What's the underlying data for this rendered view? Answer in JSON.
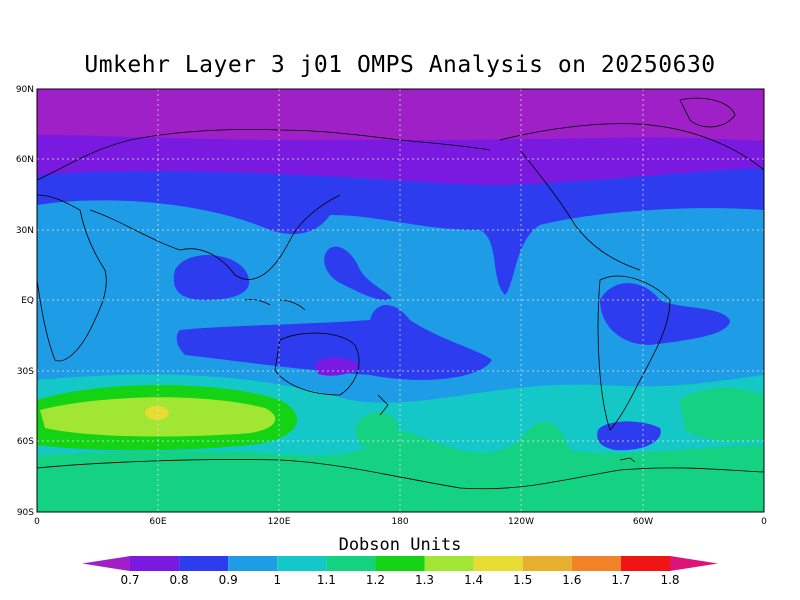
{
  "title": "Umkehr Layer 3 j01 OMPS Analysis on 20250630",
  "lat_ticks": [
    "90N",
    "60N",
    "30N",
    "EQ",
    "30S",
    "60S",
    "90S"
  ],
  "lon_ticks": [
    "0",
    "60E",
    "120E",
    "180",
    "120W",
    "60W",
    "0"
  ],
  "colorbar": {
    "label": "Dobson Units",
    "ticks": [
      "0.7",
      "0.8",
      "0.9",
      "1",
      "1.1",
      "1.2",
      "1.3",
      "1.4",
      "1.5",
      "1.6",
      "1.7",
      "1.8"
    ],
    "colors": [
      "#a020c8",
      "#7a1ae0",
      "#2e3cf0",
      "#1e9ce6",
      "#14c8c8",
      "#14d282",
      "#14d214",
      "#a0e632",
      "#e6dc32",
      "#e6af2d",
      "#f08228",
      "#f01414",
      "#dc1478"
    ]
  },
  "map_data": {
    "type": "filled-contour",
    "projection": "equirectangular",
    "lon_range": [
      0,
      360
    ],
    "lat_range": [
      -90,
      90
    ],
    "units": "Dobson Units",
    "zones": [
      {
        "band": "north-polar (60N-90N)",
        "value_range": "0.7-0.8",
        "color": "#a020c8"
      },
      {
        "band": "northern mid-latitudes (45N-60N)",
        "value_range": "0.8-0.9",
        "color": "#7a1ae0"
      },
      {
        "band": "northern subtropics",
        "value_range": "0.9-1.0",
        "color": "#2e3cf0"
      },
      {
        "band": "tropics",
        "value_range": "1.0-1.1",
        "color": "#1e9ce6"
      },
      {
        "band": "southern mid-latitudes",
        "value_range": "1.1-1.2",
        "color": "#14c8c8"
      },
      {
        "band": "southern Indian Ocean maximum",
        "value_range": "1.2-1.5",
        "color": "#a0e632"
      },
      {
        "band": "south-polar",
        "value_range": "1.2-1.3",
        "color": "#14d282"
      }
    ]
  }
}
